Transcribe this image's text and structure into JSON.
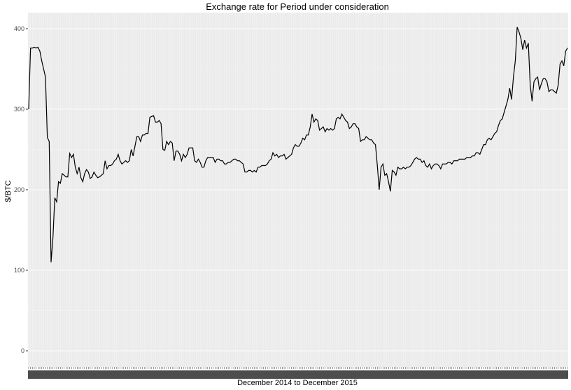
{
  "chart_data": {
    "type": "line",
    "title": "Exchange rate for Period under consideration",
    "xlabel": "December 2014 to December 2015",
    "ylabel": "$/BTC",
    "ylim": [
      -20,
      420
    ],
    "yticks": [
      0,
      100,
      200,
      300,
      400
    ],
    "grid": true,
    "legend": "none",
    "x_tick_labels_legible": false,
    "colors": {
      "panel": "#ebebeb",
      "grid_major": "#ffffff",
      "grid_minor": "#f5f5f5",
      "line": "#000000"
    },
    "series": [
      {
        "values": [
          300,
          376,
          376,
          377,
          376,
          377,
          372,
          360,
          350,
          340,
          265,
          260,
          110,
          140,
          190,
          185,
          210,
          208,
          220,
          218,
          216,
          216,
          245,
          240,
          244,
          228,
          220,
          228,
          215,
          210,
          220,
          225,
          222,
          214,
          216,
          222,
          218,
          215,
          216,
          218,
          220,
          236,
          226,
          230,
          230,
          232,
          236,
          238,
          244,
          236,
          232,
          234,
          236,
          234,
          236,
          250,
          242,
          254,
          266,
          266,
          260,
          268,
          268,
          270,
          270,
          290,
          291,
          292,
          284,
          284,
          286,
          282,
          250,
          249,
          260,
          256,
          260,
          258,
          236,
          248,
          248,
          244,
          236,
          244,
          240,
          244,
          252,
          252,
          252,
          236,
          234,
          238,
          234,
          228,
          228,
          236,
          240,
          240,
          240,
          240,
          234,
          238,
          238,
          236,
          236,
          232,
          232,
          234,
          234,
          236,
          238,
          238,
          236,
          236,
          234,
          232,
          222,
          222,
          224,
          224,
          222,
          224,
          222,
          228,
          228,
          230,
          230,
          230,
          232,
          236,
          238,
          246,
          242,
          244,
          240,
          242,
          242,
          244,
          238,
          240,
          242,
          244,
          252,
          256,
          254,
          254,
          258,
          264,
          262,
          268,
          268,
          278,
          294,
          284,
          288,
          286,
          274,
          276,
          278,
          272,
          276,
          274,
          276,
          274,
          276,
          288,
          290,
          288,
          294,
          290,
          286,
          284,
          276,
          278,
          282,
          282,
          278,
          276,
          260,
          262,
          262,
          266,
          264,
          262,
          262,
          258,
          256,
          230,
          200,
          228,
          232,
          218,
          220,
          210,
          198,
          224,
          222,
          218,
          228,
          226,
          226,
          228,
          226,
          228,
          228,
          230,
          234,
          238,
          240,
          238,
          238,
          234,
          236,
          230,
          228,
          232,
          226,
          230,
          232,
          232,
          230,
          226,
          232,
          232,
          232,
          234,
          234,
          232,
          236,
          236,
          236,
          238,
          238,
          238,
          238,
          240,
          240,
          240,
          242,
          242,
          246,
          246,
          244,
          250,
          256,
          256,
          262,
          264,
          262,
          266,
          270,
          272,
          280,
          286,
          288,
          296,
          304,
          312,
          326,
          312,
          340,
          360,
          402,
          396,
          388,
          374,
          386,
          376,
          382,
          330,
          310,
          334,
          338,
          340,
          324,
          332,
          338,
          338,
          334,
          322,
          324,
          324,
          322,
          320,
          330,
          356,
          360,
          354,
          372,
          376
        ]
      }
    ]
  }
}
